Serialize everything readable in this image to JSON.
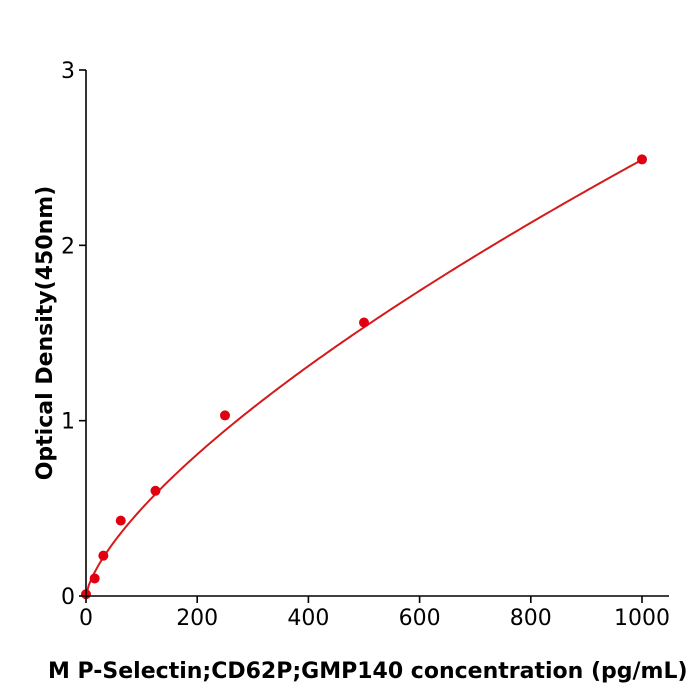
{
  "chart_data": {
    "type": "scatter",
    "title": "",
    "xlabel": "M  P-Selectin;CD62P;GMP140 concentration (pg/mL)",
    "ylabel": "Optical Density(450nm)",
    "xlim": [
      0,
      1050
    ],
    "ylim": [
      0,
      3
    ],
    "x_ticks": [
      0,
      200,
      400,
      600,
      800,
      1000
    ],
    "y_ticks": [
      0,
      1,
      2,
      3
    ],
    "x_tick_labels": [
      "0",
      "200",
      "400",
      "600",
      "800",
      "1000"
    ],
    "y_tick_labels": [
      "0",
      "1",
      "2",
      "3"
    ],
    "grid": false,
    "legend": "none",
    "series": [
      {
        "kind": "points",
        "x": [
          0,
          15.6,
          31.25,
          62.5,
          125,
          250,
          500,
          1000
        ],
        "y": [
          0.01,
          0.1,
          0.23,
          0.43,
          0.6,
          1.03,
          1.56,
          2.49
        ]
      },
      {
        "kind": "fitted-curve",
        "model": "power",
        "coef_a": 0.0199,
        "exponent": 0.699
      }
    ],
    "colors": {
      "points": "#e0000f",
      "curve": "#d41a1a",
      "axes": "#000000"
    }
  }
}
